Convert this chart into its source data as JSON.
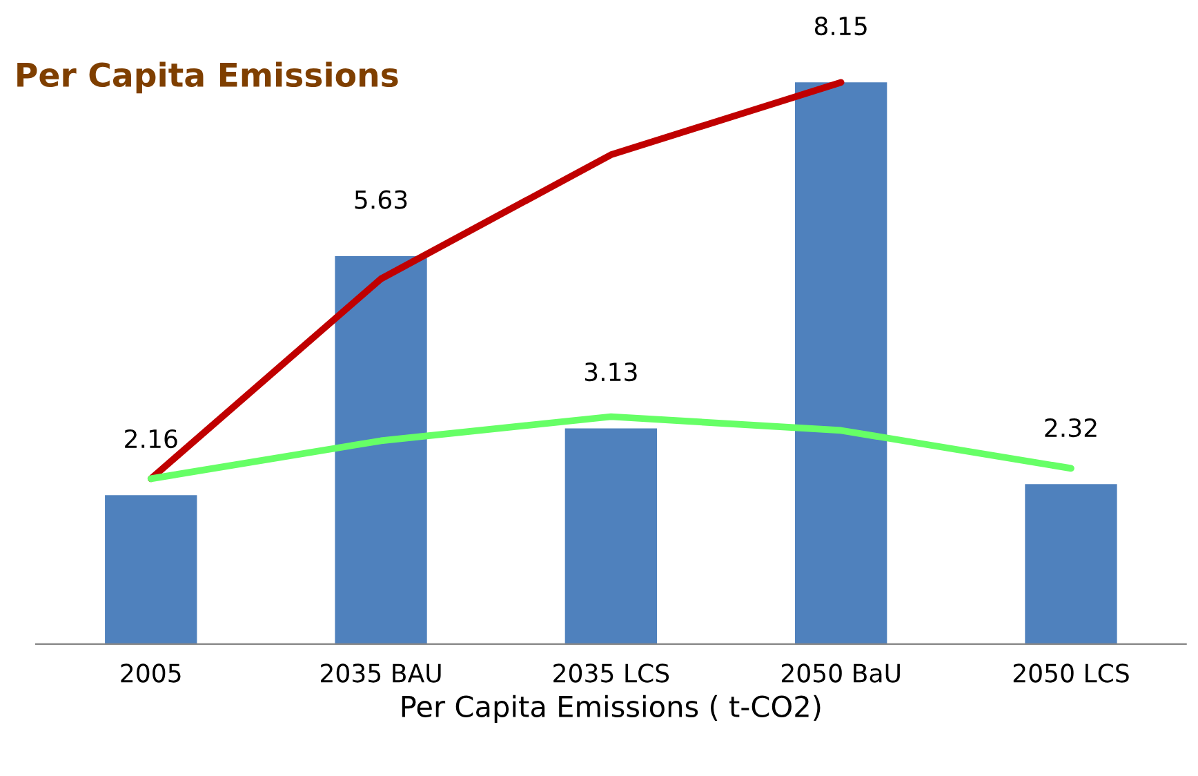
{
  "chart_data": {
    "type": "bar",
    "title": "Per Capita Emissions",
    "xlabel": "Per Capita Emissions ( t-CO2)",
    "categories": [
      "2005",
      "2035 BAU",
      "2035 LCS",
      "2050 BaU",
      "2050 LCS"
    ],
    "series": [
      {
        "color": "#4f81bd",
        "values": [
          2.16,
          5.63,
          3.13,
          8.15,
          2.32
        ],
        "value_labels": [
          "2.16",
          "5.63",
          "3.13",
          "8.15",
          "2.32"
        ]
      },
      {
        "type": "line",
        "color": "#c00000",
        "values": [
          2.4,
          5.3,
          7.1,
          8.15,
          null
        ]
      },
      {
        "type": "line",
        "color": "#66ff66",
        "values": [
          2.4,
          2.95,
          3.3,
          3.1,
          2.55
        ]
      }
    ],
    "grid": false,
    "legend": false,
    "marker": "none",
    "line_style": "solid",
    "tick_labels": "x"
  }
}
